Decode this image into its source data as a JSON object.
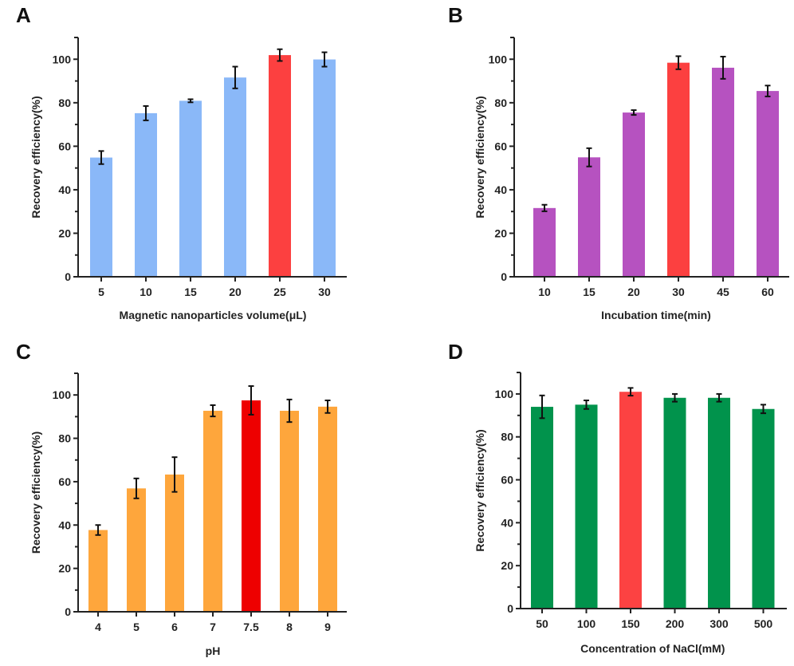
{
  "chart_data": [
    {
      "panel": "A",
      "type": "bar",
      "title": "",
      "xlabel": "Magnetic nanoparticles volume(μL)",
      "ylabel": "Recovery efficiency(%)",
      "categories": [
        "5",
        "10",
        "15",
        "20",
        "25",
        "30"
      ],
      "values": [
        54.8,
        75.2,
        80.9,
        91.6,
        101.9,
        99.9
      ],
      "errors": [
        3.0,
        3.3,
        0.7,
        5.0,
        2.7,
        3.3
      ],
      "highlight_index": 4,
      "bar_color": "#8ab8f8",
      "highlight_color": "#fc4040",
      "ylim": [
        0,
        110
      ],
      "yticks": [
        0,
        20,
        40,
        60,
        80,
        100
      ],
      "ytick_labels": [
        "0",
        "20",
        "40",
        "60",
        "80",
        "100"
      ],
      "minor_yticks": [
        10,
        30,
        50,
        70,
        90,
        110
      ],
      "grid": false,
      "legend": "none"
    },
    {
      "panel": "B",
      "type": "bar",
      "title": "",
      "xlabel": "Incubation time(min)",
      "ylabel": "Recovery efficiency(%)",
      "categories": [
        "10",
        "15",
        "20",
        "30",
        "45",
        "60"
      ],
      "values": [
        31.6,
        54.9,
        75.5,
        98.4,
        96.1,
        85.4
      ],
      "errors": [
        1.5,
        4.2,
        1.1,
        3.0,
        5.1,
        2.5
      ],
      "highlight_index": 3,
      "bar_color": "#b652c0",
      "highlight_color": "#fc4040",
      "ylim": [
        0,
        110
      ],
      "yticks": [
        0,
        20,
        40,
        60,
        80,
        100
      ],
      "ytick_labels": [
        "0",
        "20",
        "40",
        "60",
        "80",
        "100"
      ],
      "minor_yticks": [
        10,
        30,
        50,
        70,
        90,
        110
      ],
      "grid": false,
      "legend": "none"
    },
    {
      "panel": "C",
      "type": "bar",
      "title": "",
      "xlabel": "pH",
      "ylabel": "Recovery efficiency(%)",
      "categories": [
        "4",
        "5",
        "6",
        "7",
        "7.5",
        "8",
        "9"
      ],
      "values": [
        37.7,
        56.9,
        63.3,
        92.7,
        97.5,
        92.7,
        94.6
      ],
      "errors": [
        2.3,
        4.6,
        8.0,
        2.6,
        6.6,
        5.2,
        2.9
      ],
      "highlight_index": 4,
      "bar_color": "#fea63c",
      "highlight_color": "#ee0000",
      "ylim": [
        0,
        110
      ],
      "yticks": [
        0,
        20,
        40,
        60,
        80,
        100
      ],
      "ytick_labels": [
        "0",
        "20",
        "40",
        "60",
        "80",
        "100"
      ],
      "minor_yticks": [
        10,
        30,
        50,
        70,
        90,
        110
      ],
      "grid": false,
      "legend": "none"
    },
    {
      "panel": "D",
      "type": "bar",
      "title": "",
      "xlabel": "Concentration of NaCl(mM)",
      "ylabel": "Recovery efficiency(%)",
      "categories": [
        "50",
        "100",
        "150",
        "200",
        "300",
        "500"
      ],
      "values": [
        94.0,
        95.0,
        101.0,
        98.2,
        98.2,
        93.0
      ],
      "errors": [
        5.3,
        2.0,
        1.8,
        1.8,
        1.8,
        2.0
      ],
      "highlight_index": 2,
      "bar_color": "#01934c",
      "highlight_color": "#fc4242",
      "ylim": [
        0,
        110
      ],
      "yticks": [
        0,
        20,
        40,
        60,
        80,
        100
      ],
      "ytick_labels": [
        "0",
        "20",
        "40",
        "60",
        "80",
        "100"
      ],
      "minor_yticks": [
        10,
        30,
        50,
        70,
        90,
        110
      ],
      "grid": false,
      "legend": "none"
    }
  ]
}
